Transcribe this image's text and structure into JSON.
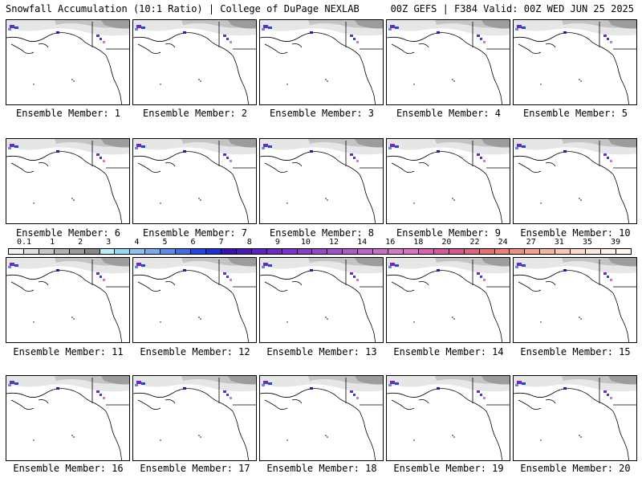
{
  "header": {
    "left": "Snowfall Accumulation (10:1 Ratio) | College of DuPage NEXLAB",
    "right": "00Z GEFS | F384 Valid: 00Z WED JUN 25 2025"
  },
  "members": [
    {
      "label": "Ensemble Member: 1"
    },
    {
      "label": "Ensemble Member: 2"
    },
    {
      "label": "Ensemble Member: 3"
    },
    {
      "label": "Ensemble Member: 4"
    },
    {
      "label": "Ensemble Member: 5"
    },
    {
      "label": "Ensemble Member: 6"
    },
    {
      "label": "Ensemble Member: 7"
    },
    {
      "label": "Ensemble Member: 8"
    },
    {
      "label": "Ensemble Member: 9"
    },
    {
      "label": "Ensemble Member: 10"
    },
    {
      "label": "Ensemble Member: 11"
    },
    {
      "label": "Ensemble Member: 12"
    },
    {
      "label": "Ensemble Member: 13"
    },
    {
      "label": "Ensemble Member: 14"
    },
    {
      "label": "Ensemble Member: 15"
    },
    {
      "label": "Ensemble Member: 16"
    },
    {
      "label": "Ensemble Member: 17"
    },
    {
      "label": "Ensemble Member: 18"
    },
    {
      "label": "Ensemble Member: 19"
    },
    {
      "label": "Ensemble Member: 20"
    }
  ],
  "colorbar": {
    "ticks": [
      "0.1",
      "1",
      "2",
      "3",
      "4",
      "5",
      "6",
      "7",
      "8",
      "9",
      "10",
      "12",
      "14",
      "16",
      "18",
      "20",
      "22",
      "24",
      "27",
      "31",
      "35",
      "39"
    ],
    "colors": [
      "#f2f2f2",
      "#e0e0e0",
      "#c8c8c8",
      "#b0b0b0",
      "#9a9a9a",
      "#888888",
      "#b8ecf8",
      "#96d8f4",
      "#8cc0f0",
      "#78aaee",
      "#5a8cea",
      "#3c6ee6",
      "#2446e0",
      "#1830d8",
      "#3c10b0",
      "#4c18b8",
      "#5e20c0",
      "#6e28c4",
      "#7c34c8",
      "#8a3ec8",
      "#9846cc",
      "#a450cc",
      "#b05ac8",
      "#bc64c8",
      "#c86ec8",
      "#d478c8",
      "#da70c0",
      "#d862b0",
      "#d45aa0",
      "#d25890",
      "#dc6480",
      "#e47070",
      "#e88078",
      "#ec8c84",
      "#f0a090",
      "#f4b4a0",
      "#f8c8b4",
      "#fcdcc8",
      "#fde8d8",
      "#fef2e8",
      "#fff8f0"
    ]
  }
}
